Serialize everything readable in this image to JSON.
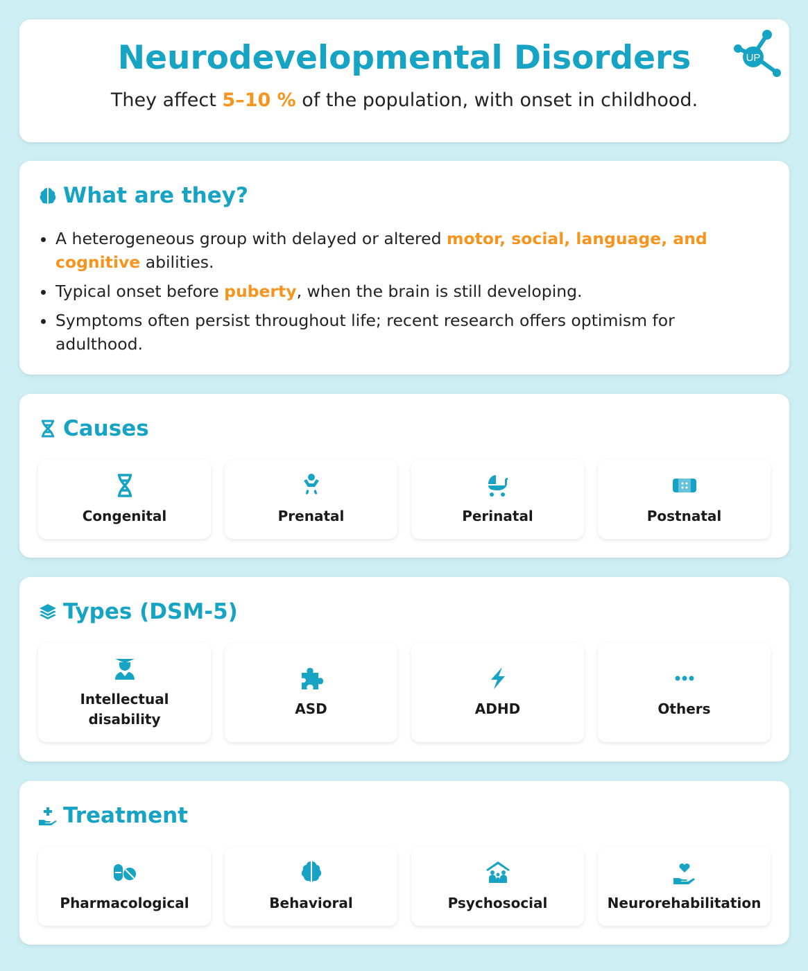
{
  "header": {
    "title": "Neurodevelopmental Disorders",
    "subtitle_pre": "They affect ",
    "subtitle_highlight": "5–10 %",
    "subtitle_post": " of the population, with onset in childhood.",
    "logo_text": "UP"
  },
  "what": {
    "title": "What are they?",
    "bullets": [
      {
        "pre": "A heterogeneous group with delayed or altered ",
        "hl": "motor, social, language, and cognitive",
        "post": " abilities."
      },
      {
        "pre": "Typical onset before ",
        "hl": "puberty",
        "post": ", when the brain is still developing."
      },
      {
        "pre": "Symptoms often persist throughout life; recent research offers optimism for adulthood.",
        "hl": "",
        "post": ""
      }
    ]
  },
  "causes": {
    "title": "Causes",
    "items": [
      {
        "label": "Congenital",
        "icon": "dna-icon"
      },
      {
        "label": "Prenatal",
        "icon": "baby-icon"
      },
      {
        "label": "Perinatal",
        "icon": "stroller-icon"
      },
      {
        "label": "Postnatal",
        "icon": "bandage-icon"
      }
    ]
  },
  "types": {
    "title": "Types (DSM-5)",
    "items": [
      {
        "label": "Intellectual disability",
        "icon": "graduate-icon"
      },
      {
        "label": "ASD",
        "icon": "puzzle-icon"
      },
      {
        "label": "ADHD",
        "icon": "bolt-icon"
      },
      {
        "label": "Others",
        "icon": "ellipsis-icon"
      }
    ]
  },
  "treatment": {
    "title": "Treatment",
    "items": [
      {
        "label": "Pharmacological",
        "icon": "pills-icon"
      },
      {
        "label": "Behavioral",
        "icon": "brain-icon"
      },
      {
        "label": "Psychosocial",
        "icon": "family-icon"
      },
      {
        "label": "Neurorehabilitation",
        "icon": "hand-heart-icon"
      }
    ]
  },
  "colors": {
    "accent": "#17a3c4",
    "highlight": "#f7941d",
    "background": "#cdeef3"
  }
}
